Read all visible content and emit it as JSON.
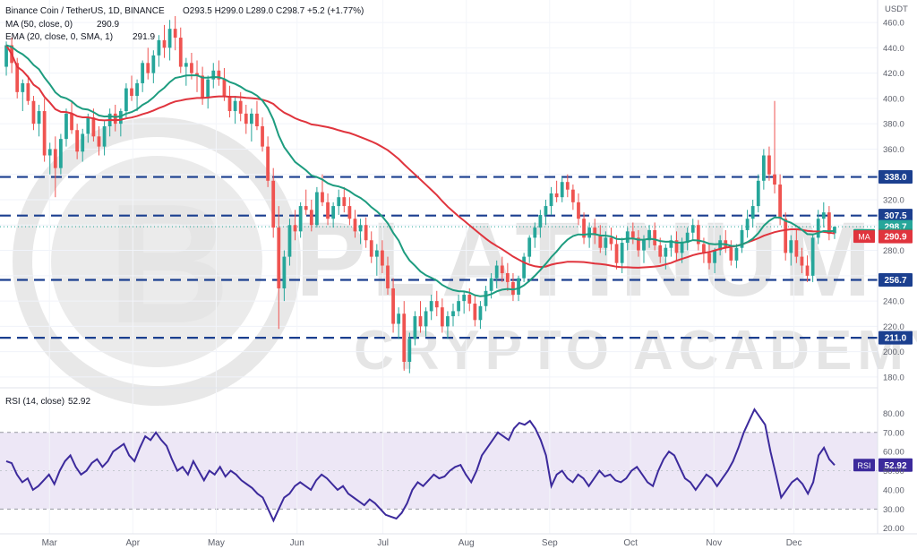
{
  "header": {
    "symbol": "Binance Coin / TetherUS, 1D, BINANCE",
    "ohlc": "O293.5  H299.0  L289.0  C298.7  +5.2 (+1.77%)",
    "ma_label": "MA (50, close, 0)",
    "ma_value": "290.9",
    "ema_label": "EMA (20, close, 0, SMA, 1)",
    "ema_value": "291.9",
    "rsi_label": "RSI (14, close)",
    "rsi_value": "52.92",
    "currency": "USDT"
  },
  "watermark": {
    "line1": "PLATINUM",
    "line2": "CRYPTO ACADEMY"
  },
  "colors": {
    "up": "#26a69a",
    "down": "#ef5350",
    "ema": "#1d9c7f",
    "ma": "#e0343d",
    "level": "#1b3f8f",
    "rsi": "#3c2a9c",
    "rsi_band": "#ede7f6",
    "last_price": "#26a69a"
  },
  "chart_data": [
    {
      "type": "candlestick",
      "title": "Binance Coin / TetherUS, 1D, BINANCE",
      "ylim": [
        175,
        465
      ],
      "y_ticks": [
        180,
        200,
        220,
        240,
        260,
        280,
        300,
        320,
        340,
        360,
        380,
        400,
        420,
        440,
        460
      ],
      "x_ticks": [
        "Mar",
        "Apr",
        "May",
        "Jun",
        "Jul",
        "Aug",
        "Sep",
        "Oct",
        "Nov",
        "Dec"
      ],
      "levels": [
        338.0,
        307.5,
        256.7,
        211.0
      ],
      "labels": [
        {
          "text": "338.0",
          "value": 338.0,
          "kind": "level"
        },
        {
          "text": "307.5",
          "value": 307.5,
          "kind": "level"
        },
        {
          "text": "298.7",
          "value": 298.7,
          "kind": "last"
        },
        {
          "text": "EMA",
          "value": 291.9,
          "kind": "ema-tag"
        },
        {
          "text": "291.9",
          "value": 291.9,
          "kind": "ema"
        },
        {
          "text": "MA",
          "value": 290.9,
          "kind": "ma-tag"
        },
        {
          "text": "290.9",
          "value": 290.9,
          "kind": "ma"
        },
        {
          "text": "256.7",
          "value": 256.7,
          "kind": "level"
        },
        {
          "text": "211.0",
          "value": 211.0,
          "kind": "level"
        }
      ],
      "candles": [
        [
          425,
          445,
          418,
          442
        ],
        [
          442,
          448,
          420,
          428
        ],
        [
          428,
          432,
          400,
          405
        ],
        [
          405,
          415,
          390,
          412
        ],
        [
          412,
          418,
          395,
          398
        ],
        [
          398,
          402,
          375,
          380
        ],
        [
          380,
          395,
          370,
          390
        ],
        [
          390,
          400,
          350,
          355
        ],
        [
          355,
          365,
          340,
          360
        ],
        [
          360,
          370,
          322,
          345
        ],
        [
          345,
          372,
          340,
          368
        ],
        [
          368,
          392,
          362,
          388
        ],
        [
          388,
          398,
          372,
          375
        ],
        [
          375,
          380,
          352,
          358
        ],
        [
          358,
          376,
          350,
          372
        ],
        [
          372,
          388,
          365,
          385
        ],
        [
          385,
          392,
          366,
          370
        ],
        [
          370,
          378,
          355,
          362
        ],
        [
          362,
          382,
          355,
          378
        ],
        [
          378,
          392,
          370,
          388
        ],
        [
          388,
          395,
          374,
          380
        ],
        [
          380,
          392,
          370,
          390
        ],
        [
          390,
          412,
          385,
          408
        ],
        [
          408,
          418,
          398,
          402
        ],
        [
          402,
          415,
          390,
          412
        ],
        [
          412,
          430,
          405,
          428
        ],
        [
          428,
          440,
          415,
          420
        ],
        [
          420,
          438,
          412,
          434
        ],
        [
          434,
          450,
          425,
          446
        ],
        [
          446,
          458,
          432,
          440
        ],
        [
          440,
          462,
          430,
          455
        ],
        [
          455,
          465,
          438,
          448
        ],
        [
          448,
          456,
          420,
          425
        ],
        [
          425,
          432,
          410,
          428
        ],
        [
          428,
          436,
          415,
          420
        ],
        [
          420,
          430,
          405,
          418
        ],
        [
          418,
          425,
          395,
          400
        ],
        [
          400,
          418,
          392,
          415
        ],
        [
          415,
          428,
          408,
          422
        ],
        [
          422,
          430,
          410,
          415
        ],
        [
          415,
          424,
          398,
          402
        ],
        [
          402,
          410,
          385,
          390
        ],
        [
          390,
          402,
          380,
          398
        ],
        [
          398,
          405,
          382,
          388
        ],
        [
          388,
          395,
          372,
          380
        ],
        [
          380,
          392,
          366,
          388
        ],
        [
          388,
          398,
          375,
          378
        ],
        [
          378,
          385,
          358,
          362
        ],
        [
          362,
          370,
          330,
          335
        ],
        [
          335,
          345,
          290,
          298
        ],
        [
          298,
          315,
          218,
          250
        ],
        [
          250,
          280,
          240,
          275
        ],
        [
          275,
          305,
          268,
          300
        ],
        [
          300,
          312,
          288,
          295
        ],
        [
          295,
          318,
          290,
          315
        ],
        [
          315,
          328,
          308,
          312
        ],
        [
          312,
          320,
          295,
          300
        ],
        [
          300,
          330,
          298,
          326
        ],
        [
          326,
          340,
          315,
          318
        ],
        [
          318,
          325,
          300,
          305
        ],
        [
          305,
          318,
          298,
          315
        ],
        [
          315,
          328,
          308,
          322
        ],
        [
          322,
          330,
          310,
          315
        ],
        [
          315,
          322,
          300,
          305
        ],
        [
          305,
          312,
          290,
          295
        ],
        [
          295,
          305,
          285,
          300
        ],
        [
          300,
          306,
          282,
          288
        ],
        [
          288,
          295,
          270,
          275
        ],
        [
          275,
          285,
          260,
          280
        ],
        [
          280,
          288,
          262,
          268
        ],
        [
          268,
          275,
          245,
          250
        ],
        [
          250,
          258,
          215,
          222
        ],
        [
          222,
          235,
          210,
          230
        ],
        [
          230,
          240,
          185,
          192
        ],
        [
          192,
          215,
          183,
          210
        ],
        [
          210,
          232,
          205,
          228
        ],
        [
          228,
          240,
          215,
          220
        ],
        [
          220,
          235,
          212,
          232
        ],
        [
          232,
          245,
          225,
          240
        ],
        [
          240,
          248,
          228,
          235
        ],
        [
          235,
          242,
          215,
          220
        ],
        [
          220,
          232,
          210,
          228
        ],
        [
          228,
          238,
          220,
          232
        ],
        [
          232,
          245,
          228,
          240
        ],
        [
          240,
          248,
          230,
          245
        ],
        [
          245,
          250,
          232,
          238
        ],
        [
          238,
          245,
          220,
          225
        ],
        [
          225,
          240,
          218,
          236
        ],
        [
          236,
          252,
          232,
          248
        ],
        [
          248,
          262,
          242,
          258
        ],
        [
          258,
          272,
          250,
          268
        ],
        [
          268,
          275,
          255,
          262
        ],
        [
          262,
          270,
          248,
          255
        ],
        [
          255,
          262,
          240,
          245
        ],
        [
          245,
          260,
          240,
          258
        ],
        [
          258,
          278,
          255,
          275
        ],
        [
          275,
          292,
          270,
          290
        ],
        [
          290,
          302,
          282,
          298
        ],
        [
          298,
          312,
          290,
          308
        ],
        [
          308,
          320,
          300,
          315
        ],
        [
          315,
          330,
          308,
          325
        ],
        [
          325,
          335,
          318,
          322
        ],
        [
          322,
          338,
          318,
          334
        ],
        [
          334,
          340,
          322,
          328
        ],
        [
          328,
          332,
          312,
          318
        ],
        [
          318,
          325,
          300,
          305
        ],
        [
          305,
          310,
          285,
          290
        ],
        [
          290,
          302,
          282,
          298
        ],
        [
          298,
          305,
          285,
          292
        ],
        [
          292,
          300,
          278,
          282
        ],
        [
          282,
          295,
          276,
          290
        ],
        [
          290,
          298,
          280,
          285
        ],
        [
          285,
          292,
          265,
          270
        ],
        [
          270,
          290,
          262,
          286
        ],
        [
          286,
          298,
          280,
          295
        ],
        [
          295,
          302,
          285,
          290
        ],
        [
          290,
          296,
          275,
          280
        ],
        [
          280,
          292,
          270,
          288
        ],
        [
          288,
          300,
          282,
          296
        ],
        [
          296,
          302,
          280,
          284
        ],
        [
          284,
          290,
          270,
          275
        ],
        [
          275,
          285,
          265,
          282
        ],
        [
          282,
          292,
          275,
          288
        ],
        [
          288,
          295,
          272,
          278
        ],
        [
          278,
          290,
          270,
          286
        ],
        [
          286,
          298,
          280,
          294
        ],
        [
          294,
          305,
          288,
          300
        ],
        [
          300,
          304,
          280,
          285
        ],
        [
          285,
          290,
          270,
          278
        ],
        [
          278,
          285,
          265,
          270
        ],
        [
          270,
          282,
          262,
          280
        ],
        [
          280,
          292,
          276,
          288
        ],
        [
          288,
          296,
          278,
          282
        ],
        [
          282,
          288,
          268,
          272
        ],
        [
          272,
          285,
          266,
          282
        ],
        [
          282,
          300,
          278,
          296
        ],
        [
          296,
          312,
          290,
          305
        ],
        [
          305,
          320,
          298,
          315
        ],
        [
          315,
          340,
          310,
          335
        ],
        [
          335,
          360,
          328,
          355
        ],
        [
          355,
          362,
          335,
          340
        ],
        [
          340,
          398,
          325,
          332
        ],
        [
          332,
          340,
          300,
          305
        ],
        [
          305,
          310,
          272,
          278
        ],
        [
          278,
          292,
          268,
          288
        ],
        [
          288,
          296,
          270,
          275
        ],
        [
          275,
          282,
          262,
          268
        ],
        [
          268,
          276,
          255,
          260
        ],
        [
          260,
          292,
          255,
          290
        ],
        [
          290,
          312,
          285,
          305
        ],
        [
          305,
          318,
          298,
          310
        ],
        [
          310,
          315,
          288,
          293
        ],
        [
          293.5,
          299,
          289,
          298.7
        ]
      ],
      "ema": [],
      "ma": []
    },
    {
      "type": "line",
      "title": "RSI (14, close)",
      "ylim": [
        18,
        90
      ],
      "y_ticks": [
        20,
        30,
        40,
        50,
        60,
        70,
        80
      ],
      "band": [
        30,
        70
      ],
      "current": 52.92,
      "values": [
        55,
        54,
        48,
        44,
        46,
        40,
        42,
        45,
        48,
        43,
        50,
        55,
        58,
        52,
        48,
        50,
        54,
        56,
        52,
        55,
        60,
        62,
        64,
        58,
        55,
        62,
        68,
        66,
        70,
        66,
        63,
        56,
        50,
        52,
        48,
        55,
        50,
        45,
        50,
        48,
        52,
        47,
        50,
        48,
        45,
        43,
        41,
        38,
        36,
        30,
        24,
        30,
        36,
        38,
        42,
        44,
        42,
        40,
        45,
        48,
        46,
        43,
        40,
        42,
        38,
        36,
        34,
        32,
        35,
        33,
        30,
        27,
        26,
        25,
        28,
        33,
        40,
        44,
        42,
        45,
        48,
        46,
        47,
        50,
        52,
        53,
        48,
        44,
        50,
        58,
        62,
        66,
        70,
        68,
        66,
        72,
        75,
        74,
        76,
        72,
        66,
        58,
        42,
        48,
        50,
        46,
        44,
        48,
        46,
        42,
        46,
        50,
        47,
        48,
        45,
        44,
        46,
        50,
        52,
        48,
        44,
        42,
        50,
        56,
        60,
        58,
        52,
        46,
        44,
        40,
        44,
        48,
        46,
        42,
        46,
        50,
        55,
        62,
        70,
        76,
        82,
        78,
        74,
        60,
        48,
        36,
        40,
        44,
        46,
        43,
        38,
        44,
        58,
        62,
        56,
        52.92
      ]
    }
  ]
}
